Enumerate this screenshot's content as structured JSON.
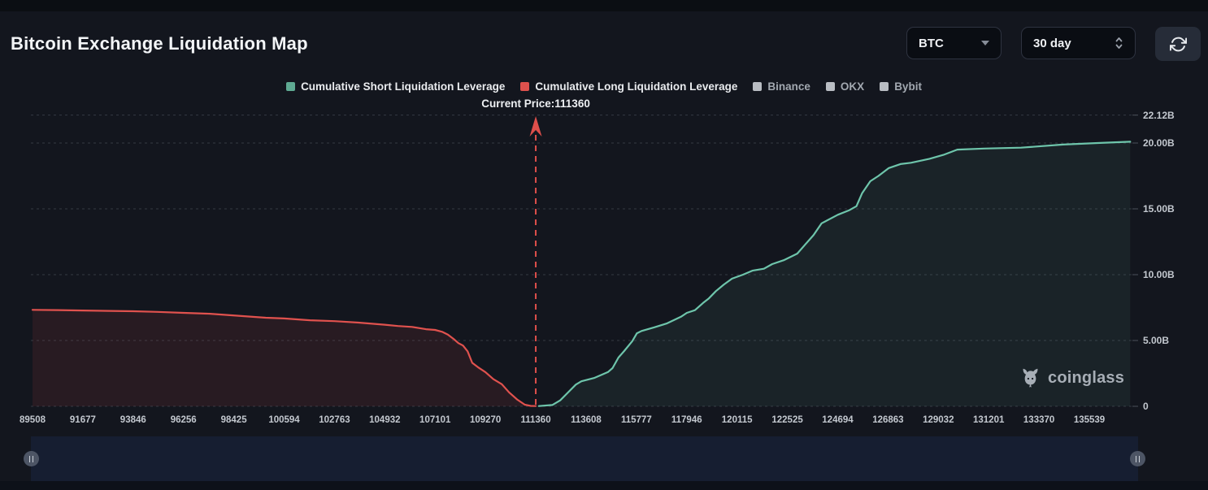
{
  "header": {
    "title": "Bitcoin Exchange Liquidation Map",
    "symbol_select": {
      "value": "BTC"
    },
    "timeframe_select": {
      "value": "30 day"
    }
  },
  "watermark": {
    "text": "coinglass"
  },
  "colors": {
    "background": "#13161e",
    "short_line": "#6ec5ab",
    "short_fill": "rgba(110,197,171,0.08)",
    "long_line": "#e0524e",
    "long_fill": "rgba(224,82,78,0.10)",
    "gridline": "#343943",
    "axis_text": "#c3c8cf",
    "price_line": "#df4f4b"
  },
  "chart_data": {
    "type": "line",
    "title": "Bitcoin Exchange Liquidation Map",
    "current_price": 111360,
    "current_price_label": "Current Price:111360",
    "grid": "horizontal dashed",
    "legend_position": "top center",
    "ylabel": "",
    "xlabel": "",
    "ylim": [
      0,
      22.12
    ],
    "legend": [
      {
        "key": "short",
        "label": "Cumulative Short Liquidation Leverage",
        "swatch": "#5faa93",
        "text_color": "#e9ebee"
      },
      {
        "key": "long",
        "label": "Cumulative Long Liquidation Leverage",
        "swatch": "#dd514d",
        "text_color": "#e9ebee"
      },
      {
        "key": "binance",
        "label": "Binance",
        "swatch": "#b9bdc3",
        "text_color": "#a2a8b0"
      },
      {
        "key": "okx",
        "label": "OKX",
        "swatch": "#b9bdc3",
        "text_color": "#a2a8b0"
      },
      {
        "key": "bybit",
        "label": "Bybit",
        "swatch": "#b9bdc3",
        "text_color": "#a2a8b0"
      }
    ],
    "x_ticks": [
      "89508",
      "91677",
      "93846",
      "96256",
      "98425",
      "100594",
      "102763",
      "104932",
      "107101",
      "109270",
      "111360",
      "113608",
      "115777",
      "117946",
      "120115",
      "122525",
      "124694",
      "126863",
      "129032",
      "131201",
      "133370",
      "135539"
    ],
    "y_ticks": [
      {
        "value": 0,
        "label": "0"
      },
      {
        "value": 5,
        "label": "5.00B"
      },
      {
        "value": 10,
        "label": "10.00B"
      },
      {
        "value": 15,
        "label": "15.00B"
      },
      {
        "value": 20,
        "label": "20.00B"
      },
      {
        "value": 22.12,
        "label": "22.12B"
      }
    ],
    "series": [
      {
        "key": "long",
        "name": "Cumulative Long Liquidation Leverage",
        "color": "#e0524e",
        "fill": "rgba(224,82,78,0.10)",
        "unit": "B",
        "points": [
          [
            89508,
            7.33
          ],
          [
            90600,
            7.31
          ],
          [
            91677,
            7.28
          ],
          [
            93846,
            7.22
          ],
          [
            95000,
            7.17
          ],
          [
            96256,
            7.1
          ],
          [
            97400,
            7.03
          ],
          [
            99000,
            6.83
          ],
          [
            99800,
            6.73
          ],
          [
            100594,
            6.67
          ],
          [
            101700,
            6.54
          ],
          [
            102763,
            6.47
          ],
          [
            103800,
            6.36
          ],
          [
            104932,
            6.2
          ],
          [
            105500,
            6.1
          ],
          [
            106100,
            6.03
          ],
          [
            106700,
            5.86
          ],
          [
            107101,
            5.8
          ],
          [
            107400,
            5.66
          ],
          [
            107650,
            5.45
          ],
          [
            107900,
            5.12
          ],
          [
            108100,
            4.8
          ],
          [
            108300,
            4.62
          ],
          [
            108500,
            4.18
          ],
          [
            108700,
            3.3
          ],
          [
            108950,
            2.97
          ],
          [
            109270,
            2.6
          ],
          [
            109600,
            2.06
          ],
          [
            109950,
            1.68
          ],
          [
            110250,
            1.06
          ],
          [
            110600,
            0.5
          ],
          [
            110900,
            0.13
          ],
          [
            111150,
            0.03
          ],
          [
            111360,
            0.02
          ]
        ]
      },
      {
        "key": "short",
        "name": "Cumulative Short Liquidation Leverage",
        "color": "#6ec5ab",
        "fill": "rgba(110,197,171,0.08)",
        "unit": "B",
        "points": [
          [
            111500,
            0.02
          ],
          [
            112100,
            0.1
          ],
          [
            112450,
            0.45
          ],
          [
            112800,
            1.05
          ],
          [
            113150,
            1.65
          ],
          [
            113400,
            1.9
          ],
          [
            113950,
            2.15
          ],
          [
            114550,
            2.6
          ],
          [
            114750,
            2.9
          ],
          [
            115000,
            3.7
          ],
          [
            115250,
            4.2
          ],
          [
            115600,
            4.95
          ],
          [
            115800,
            5.55
          ],
          [
            116000,
            5.72
          ],
          [
            116550,
            6.0
          ],
          [
            117100,
            6.3
          ],
          [
            117700,
            6.8
          ],
          [
            117950,
            7.1
          ],
          [
            118300,
            7.3
          ],
          [
            118650,
            7.85
          ],
          [
            118900,
            8.2
          ],
          [
            119200,
            8.75
          ],
          [
            119550,
            9.25
          ],
          [
            119900,
            9.7
          ],
          [
            120400,
            10.0
          ],
          [
            120850,
            10.3
          ],
          [
            121400,
            10.45
          ],
          [
            121800,
            10.8
          ],
          [
            122350,
            11.1
          ],
          [
            122950,
            11.6
          ],
          [
            123300,
            12.3
          ],
          [
            123650,
            13.0
          ],
          [
            124000,
            13.9
          ],
          [
            124700,
            14.55
          ],
          [
            125200,
            14.9
          ],
          [
            125500,
            15.2
          ],
          [
            125750,
            16.2
          ],
          [
            126100,
            17.1
          ],
          [
            126450,
            17.5
          ],
          [
            126900,
            18.1
          ],
          [
            127400,
            18.4
          ],
          [
            127850,
            18.5
          ],
          [
            128650,
            18.8
          ],
          [
            129250,
            19.1
          ],
          [
            129850,
            19.5
          ],
          [
            131000,
            19.58
          ],
          [
            132600,
            19.65
          ],
          [
            134400,
            19.88
          ],
          [
            135900,
            20.0
          ],
          [
            137300,
            20.1
          ]
        ]
      }
    ]
  }
}
